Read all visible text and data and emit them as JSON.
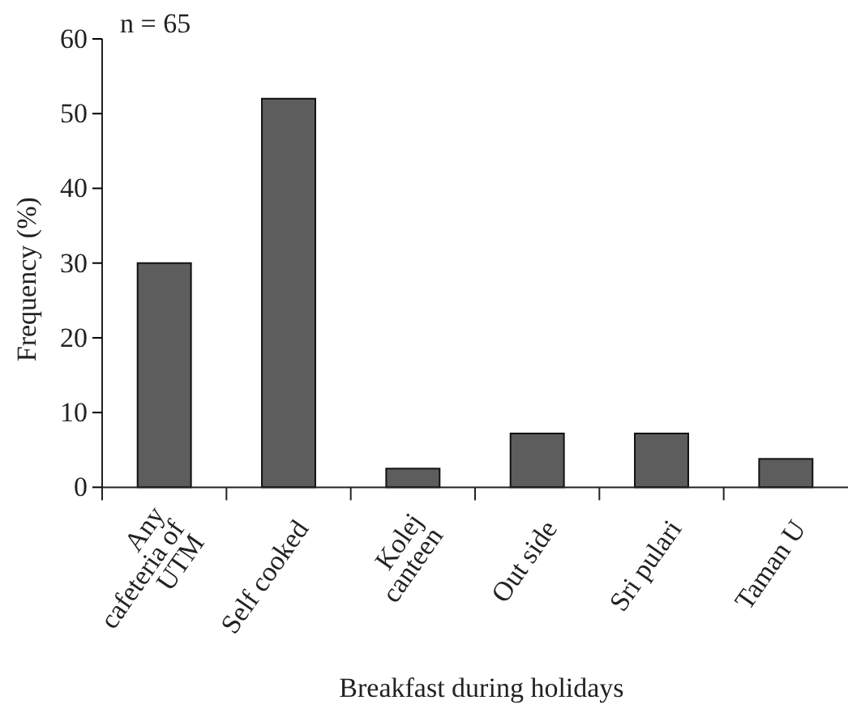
{
  "chart_data": {
    "type": "bar",
    "xlabel": "Breakfast during holidays",
    "ylabel": "Frequency (%)",
    "categories": [
      "Any\ncafeteria of\nUTM",
      "Self cooked",
      "Kolej\ncanteen",
      "Out side",
      "Sri pulari",
      "Taman U"
    ],
    "values": [
      30,
      52,
      2.5,
      7.2,
      7.2,
      3.8
    ],
    "color": "#5d5d5d",
    "ylim": [
      0,
      60
    ],
    "yticks": [
      0,
      10,
      20,
      30,
      40,
      50,
      60
    ],
    "grid": false,
    "annotations": [
      "n = 65"
    ]
  }
}
